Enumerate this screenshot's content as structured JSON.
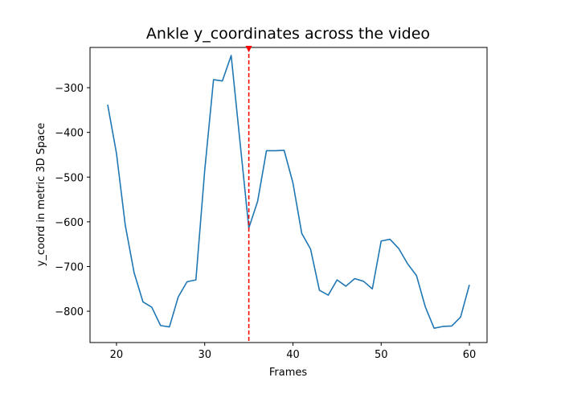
{
  "chart_data": {
    "type": "line",
    "title": "Ankle y_coordinates across the video",
    "xlabel": "Frames",
    "ylabel": "y_coord in metric 3D Space",
    "xlim": [
      17,
      62
    ],
    "ylim": [
      -870,
      -210
    ],
    "xticks": [
      20,
      30,
      40,
      50,
      60
    ],
    "yticks": [
      -300,
      -400,
      -500,
      -600,
      -700,
      -800
    ],
    "grid": false,
    "series": [
      {
        "color": "#1f77b4",
        "x": [
          19,
          20,
          21,
          22,
          23,
          24,
          25,
          26,
          27,
          28,
          29,
          30,
          31,
          32,
          33,
          34,
          35,
          36,
          37,
          38,
          39,
          40,
          41,
          42,
          43,
          44,
          45,
          46,
          47,
          48,
          49,
          50,
          51,
          52,
          53,
          54,
          55,
          56,
          57,
          58,
          59,
          60
        ],
        "y": [
          -338,
          -447,
          -608,
          -714,
          -779,
          -791,
          -832,
          -835,
          -768,
          -734,
          -730,
          -485,
          -282,
          -285,
          -228,
          -421,
          -614,
          -554,
          -441,
          -441,
          -440,
          -513,
          -626,
          -661,
          -753,
          -764,
          -730,
          -744,
          -727,
          -733,
          -750,
          -643,
          -639,
          -660,
          -694,
          -720,
          -790,
          -838,
          -834,
          -833,
          -813,
          -741
        ]
      }
    ],
    "marker_line": {
      "x": 35,
      "color": "#ff0000",
      "style": "dashed"
    }
  }
}
